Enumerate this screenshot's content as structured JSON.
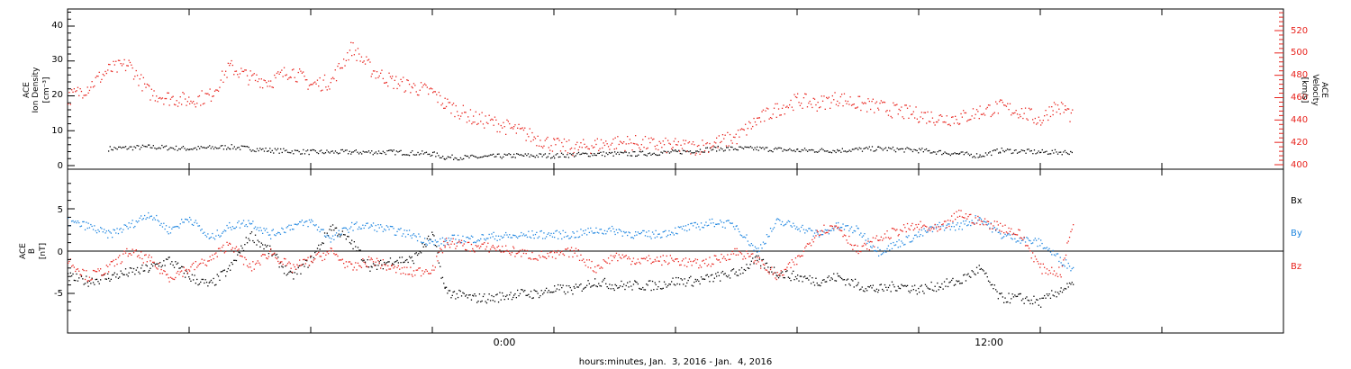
{
  "xaxis_label": "hours:minutes, Jan.  3, 2016 - Jan.  4, 2016",
  "x_tick_labels": [
    "0:00",
    "12:00"
  ],
  "colors": {
    "axis": "#000000",
    "velocity": "#e8231d",
    "bx": "#000000",
    "by": "#1f86e0",
    "bz": "#e8231d"
  },
  "chart_data": [
    {
      "type": "scatter",
      "panel": "top",
      "ylabel_left": [
        "ACE",
        "Ion Density",
        "[cm⁻³]"
      ],
      "ylabel_right": [
        "ACE",
        "Velocity",
        "[km/s]"
      ],
      "xlim_hours": [
        -12,
        18
      ],
      "ylim_left": [
        -2,
        45
      ],
      "ylim_right": [
        398,
        538
      ],
      "left_ticks": [
        "0",
        "10",
        "20",
        "30",
        "40"
      ],
      "right_ticks": [
        "400",
        "420",
        "440",
        "460",
        "480",
        "500",
        "520"
      ],
      "series": [
        {
          "key": "density",
          "color": "#000000",
          "x": [
            -11,
            -10,
            -9,
            -8,
            -7,
            -6,
            -5,
            -4,
            -3,
            -2.7,
            -2,
            -1,
            0,
            1,
            2,
            3,
            4,
            5,
            6,
            7,
            8,
            9,
            10,
            10.5,
            11,
            12,
            12.8
          ],
          "y": [
            5,
            5.5,
            5,
            5.5,
            4.5,
            4,
            4,
            4,
            3.5,
            2.5,
            2.5,
            3,
            3,
            3.5,
            3.5,
            4,
            5,
            5,
            4.5,
            4.5,
            5,
            4.5,
            3.5,
            3,
            4.5,
            4,
            4
          ]
        },
        {
          "key": "velocity",
          "color": "#e8231d",
          "x": [
            -12,
            -11.5,
            -11,
            -10.5,
            -10,
            -9.5,
            -9,
            -8.5,
            -8,
            -7.5,
            -7,
            -6.5,
            -6,
            -5.5,
            -5,
            -4.5,
            -4,
            -3.5,
            -3,
            -2.7,
            -2,
            -1.5,
            -1,
            -0.5,
            0,
            0.5,
            1,
            1.5,
            2,
            2.5,
            3,
            3.5,
            4,
            4.5,
            5,
            5.5,
            6,
            6.5,
            7,
            7.5,
            8,
            8.5,
            9,
            9.5,
            10,
            10.5,
            11,
            11.5,
            12,
            12.3,
            12.6,
            12.8
          ],
          "y": [
            460,
            470,
            485,
            490,
            465,
            460,
            458,
            462,
            488,
            478,
            475,
            485,
            472,
            475,
            505,
            485,
            475,
            470,
            465,
            455,
            442,
            438,
            432,
            425,
            418,
            415,
            418,
            420,
            420,
            418,
            417,
            416,
            420,
            425,
            440,
            450,
            458,
            455,
            460,
            455,
            452,
            448,
            445,
            442,
            442,
            448,
            452,
            448,
            440,
            452,
            450,
            442
          ]
        }
      ]
    },
    {
      "type": "scatter",
      "panel": "bottom",
      "ylabel_left": [
        "ACE",
        "B",
        "[nT]"
      ],
      "xlim_hours": [
        -12,
        18
      ],
      "ylim": [
        -8,
        9
      ],
      "y_ticks": [
        "-5",
        "0",
        "5"
      ],
      "legend": [
        "Bx",
        "By",
        "Bz"
      ],
      "legend_position": "right",
      "series": [
        {
          "key": "bx",
          "color": "#000000",
          "x": [
            -12,
            -11.5,
            -11,
            -10.5,
            -10,
            -9.5,
            -9,
            -8.5,
            -8,
            -7.5,
            -7,
            -6.5,
            -6,
            -5.5,
            -5,
            -4.5,
            -4,
            -3.5,
            -3,
            -2.7,
            -2.5,
            -2,
            -1.5,
            -1,
            -0.5,
            0,
            0.5,
            1,
            1.5,
            2,
            2.5,
            3,
            3.5,
            4,
            4.5,
            5,
            5.5,
            6,
            6.5,
            7,
            7.5,
            8,
            8.5,
            9,
            9.5,
            10,
            10.5,
            11,
            11.5,
            12,
            12.5,
            12.8
          ],
          "y": [
            -3,
            -3.5,
            -3,
            -2.5,
            -2,
            -1,
            -3,
            -4,
            -2,
            2,
            0,
            -3,
            -1,
            3,
            1,
            -2,
            -1,
            -1,
            2,
            -4.5,
            -5,
            -5.5,
            -5.5,
            -5,
            -5,
            -4.5,
            -4.5,
            -3.5,
            -4,
            -4,
            -4,
            -3.5,
            -3.5,
            -3,
            -2.5,
            -1,
            -2.5,
            -3,
            -3.5,
            -3,
            -4,
            -4.5,
            -4,
            -4.5,
            -4,
            -3.5,
            -2,
            -5.5,
            -5.5,
            -6,
            -4.5,
            -4
          ]
        },
        {
          "key": "by",
          "color": "#1f86e0",
          "x": [
            -12,
            -11.5,
            -11,
            -10.5,
            -10,
            -9.5,
            -9,
            -8.5,
            -8,
            -7.5,
            -7,
            -6.5,
            -6,
            -5.5,
            -5,
            -4.5,
            -4,
            -3.5,
            -3,
            -2.7,
            -2.5,
            -2,
            -1.5,
            -1,
            -0.5,
            0,
            0.5,
            1,
            1.5,
            2,
            2.5,
            3,
            3.5,
            4,
            4.5,
            5,
            5.5,
            6,
            6.5,
            7,
            7.5,
            8,
            8.5,
            9,
            9.5,
            10,
            10.5,
            11,
            11.5,
            12,
            12.5,
            12.8
          ],
          "y": [
            3.5,
            3,
            2,
            3,
            4.5,
            2.5,
            4,
            1.5,
            3,
            3.5,
            2,
            3,
            3.5,
            1.5,
            3,
            3,
            2.5,
            2,
            1,
            1.2,
            1.5,
            1.5,
            1.8,
            1.8,
            2,
            2,
            2,
            2.5,
            2.5,
            2,
            2,
            2.5,
            3,
            3.5,
            3,
            0,
            3.5,
            3,
            2,
            3,
            2.5,
            0,
            1,
            2,
            3,
            3,
            4,
            2,
            1.5,
            1,
            -1,
            -2
          ]
        },
        {
          "key": "bz",
          "color": "#e8231d",
          "x": [
            -12,
            -11.5,
            -11,
            -10.5,
            -10,
            -9.5,
            -9,
            -8.5,
            -8,
            -7.5,
            -7,
            -6.5,
            -6,
            -5.5,
            -5,
            -4.5,
            -4,
            -3.5,
            -3,
            -2.7,
            -2.5,
            -2,
            -1.5,
            -1,
            -0.5,
            0,
            0.5,
            1,
            1.5,
            2,
            2.5,
            3,
            3.5,
            4,
            4.5,
            5,
            5.5,
            6,
            6.5,
            7,
            7.5,
            8,
            8.5,
            9,
            9.5,
            10,
            10.5,
            11,
            11.5,
            12,
            12.5,
            12.8
          ],
          "y": [
            -1,
            -3,
            -2,
            0,
            -1,
            -3,
            -2,
            -1,
            1,
            -2,
            0,
            -2,
            -1,
            0,
            -2,
            -1,
            -2,
            -2.5,
            -2,
            1,
            1,
            0.5,
            0.5,
            0,
            -0.5,
            -0.5,
            0,
            -2,
            -0.5,
            -1,
            -1,
            -1,
            -1.5,
            -1,
            0,
            -1,
            -3,
            -1,
            2.5,
            3,
            0,
            1.5,
            2.5,
            3,
            2.5,
            4.5,
            3.5,
            3,
            2,
            -2,
            -2.5,
            3.5
          ]
        }
      ]
    }
  ]
}
